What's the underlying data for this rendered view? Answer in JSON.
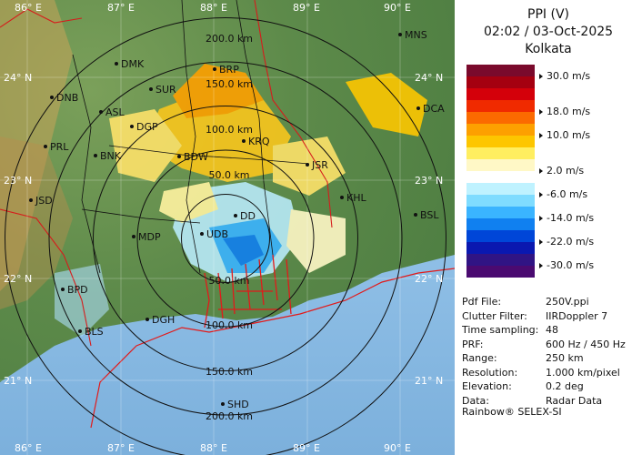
{
  "panel": {
    "product": "PPI (V)",
    "datetime": "02:02 / 03-Oct-2025",
    "station": "Kolkata",
    "scale": [
      {
        "label": "30.0 m/s",
        "color": "#7a0a2c"
      },
      {
        "label": "",
        "color": "#a50010"
      },
      {
        "label": "",
        "color": "#d4000a"
      },
      {
        "label": "18.0 m/s",
        "color": "#f02a00"
      },
      {
        "label": "",
        "color": "#fb6a00"
      },
      {
        "label": "10.0 m/s",
        "color": "#fda000"
      },
      {
        "label": "",
        "color": "#fdc600"
      },
      {
        "label": "",
        "color": "#ffee60"
      },
      {
        "label": "2.0 m/s",
        "color": "#fff8c6"
      },
      {
        "label": "",
        "color": "#ffffff"
      },
      {
        "label": "-6.0 m/s",
        "color": "#bff2ff"
      },
      {
        "label": "",
        "color": "#7fdcff"
      },
      {
        "label": "-14.0 m/s",
        "color": "#3ab4ff"
      },
      {
        "label": "",
        "color": "#1080f0"
      },
      {
        "label": "-22.0 m/s",
        "color": "#0046d8"
      },
      {
        "label": "",
        "color": "#0a18b0"
      },
      {
        "label": "-30.0 m/s",
        "color": "#301484"
      },
      {
        "label": "",
        "color": "#4a0a70"
      }
    ],
    "info": [
      {
        "key": "Pdf File:",
        "value": "250V.ppi"
      },
      {
        "key": "Clutter Filter:",
        "value": "IIRDoppler 7"
      },
      {
        "key": "Time sampling:",
        "value": "48"
      },
      {
        "key": "PRF:",
        "value": "600 Hz / 450 Hz"
      },
      {
        "key": "Range:",
        "value": "250 km"
      },
      {
        "key": "Resolution:",
        "value": "1.000 km/pixel"
      },
      {
        "key": "Elevation:",
        "value": "0.2 deg"
      },
      {
        "key": "Data:",
        "value": "Radar Data"
      }
    ],
    "footer": "Rainbow® SELEX-SI"
  },
  "map": {
    "longitude_labels": [
      "86° E",
      "87° E",
      "88° E",
      "89° E",
      "90° E"
    ],
    "latitude_labels": [
      "24° N",
      "23° N",
      "22° N",
      "21° N"
    ],
    "ring_labels": [
      "50.0 km",
      "100.0 km",
      "150.0 km",
      "200.0 km"
    ],
    "cities": [
      "MNS",
      "DMK",
      "BRP",
      "DNB",
      "SUR",
      "DCA",
      "ASL",
      "DGP",
      "KRQ",
      "PRL",
      "BNK",
      "BDW",
      "JSR",
      "JSD",
      "KHL",
      "DD",
      "BSL",
      "MDP",
      "UDB",
      "BPD",
      "DGH",
      "BLS",
      "SHD"
    ]
  }
}
